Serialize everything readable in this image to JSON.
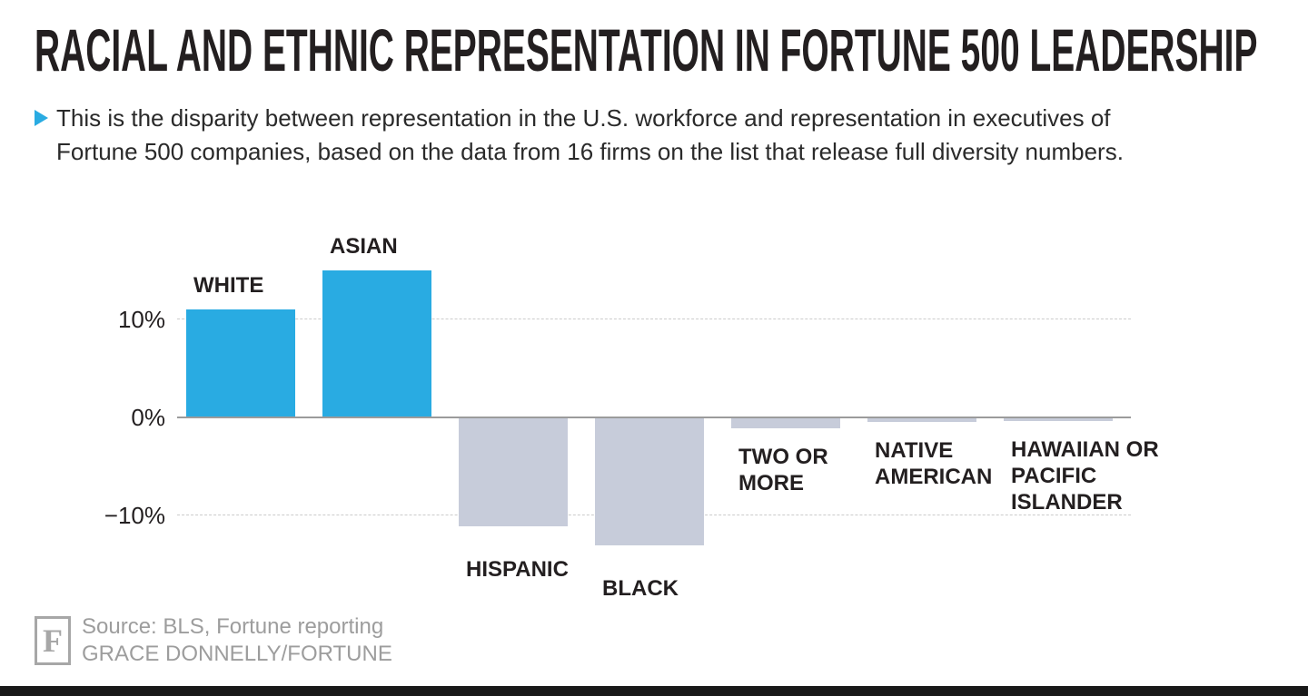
{
  "header": {
    "title": "RACIAL AND ETHNIC REPRESENTATION IN FORTUNE 500 LEADERSHIP",
    "subtitle_line1": "This is the disparity between representation in the U.S. workforce and representation in executives of",
    "subtitle_line2": "Fortune 500 companies, based on the data from 16 firms on the list that release full diversity numbers.",
    "bullet_color": "#29ABE2"
  },
  "chart_data": {
    "type": "bar",
    "title": "RACIAL AND ETHNIC REPRESENTATION IN FORTUNE 500 LEADERSHIP",
    "categories": [
      "WHITE",
      "ASIAN",
      "HISPANIC",
      "BLACK",
      "TWO OR MORE",
      "NATIVE AMERICAN",
      "HAWAIIAN OR PACIFIC ISLANDER"
    ],
    "values": [
      11,
      15,
      -11,
      -13,
      -1,
      -0.4,
      -0.3
    ],
    "unit": "%",
    "label_lines": [
      [
        "WHITE"
      ],
      [
        "ASIAN"
      ],
      [
        "HISPANIC"
      ],
      [
        "BLACK"
      ],
      [
        "TWO OR",
        "MORE"
      ],
      [
        "NATIVE",
        "AMERICAN"
      ],
      [
        "HAWAIIAN OR",
        "PACIFIC",
        "ISLANDER"
      ]
    ],
    "yticks": [
      {
        "value": 10,
        "label": "10%"
      },
      {
        "value": 0,
        "label": "0%"
      },
      {
        "value": -10,
        "label": "−10%"
      }
    ],
    "ylim": [
      -14,
      16
    ],
    "grid": "dashed horizontal lines at +10% and -10%, solid line at 0%",
    "legend": "none",
    "colors": {
      "positive": "#29ABE2",
      "negative": "#C7CCDA"
    }
  },
  "footer": {
    "logo_letter": "F",
    "source": "Source: BLS, Fortune reporting",
    "credit": "GRACE DONNELLY/FORTUNE"
  }
}
